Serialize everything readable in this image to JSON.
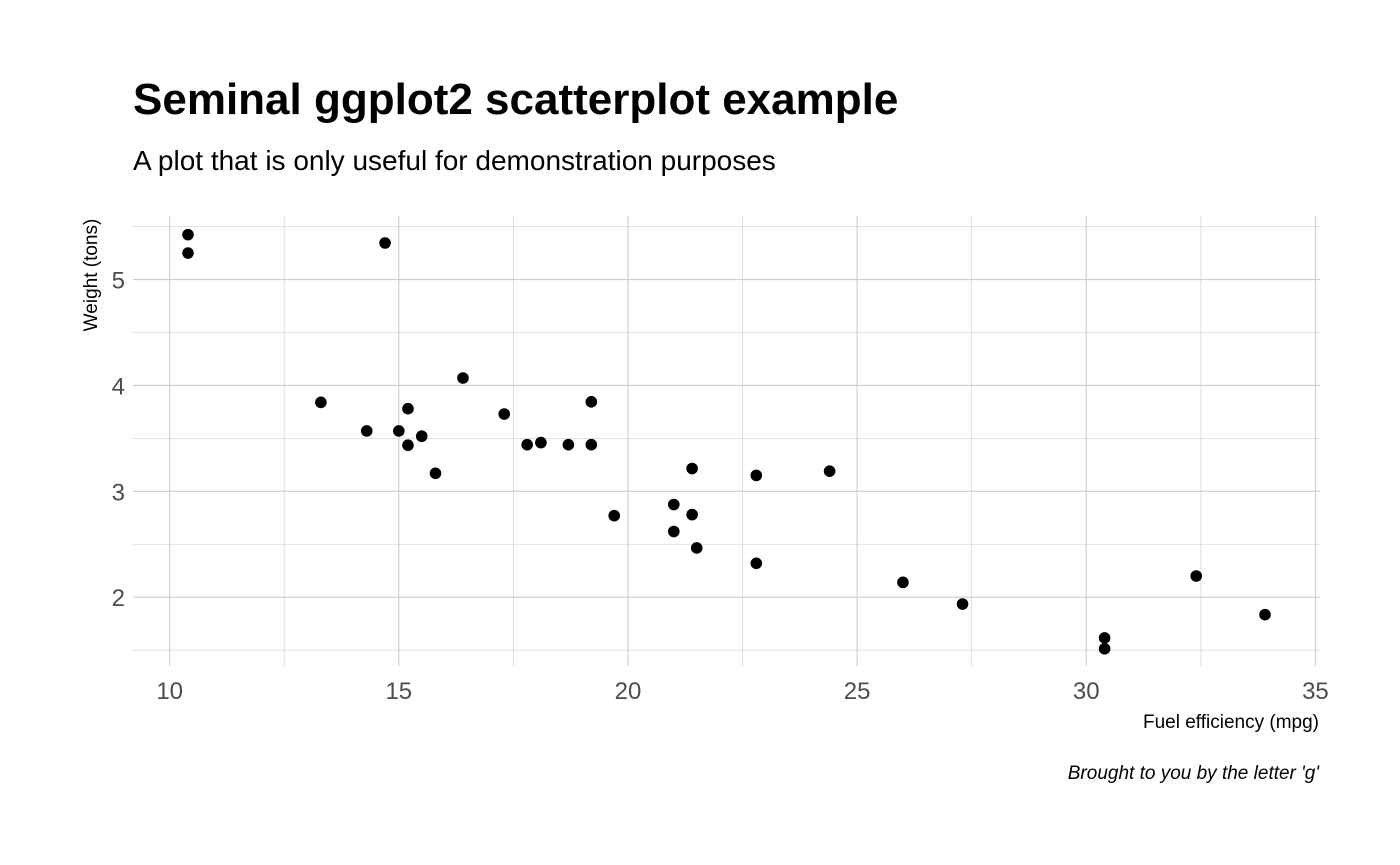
{
  "chart_data": {
    "type": "scatter",
    "title": "Seminal ggplot2 scatterplot example",
    "subtitle": "A plot that is only useful for demonstration purposes",
    "xlabel": "Fuel efficiency (mpg)",
    "ylabel": "Weight (tons)",
    "caption": "Brought to you by the letter 'g'",
    "xlim": [
      9.2,
      35.1
    ],
    "ylim": [
      1.35,
      5.6
    ],
    "x_ticks": [
      10,
      15,
      20,
      25,
      30,
      35
    ],
    "x_tick_labels": [
      "10",
      "15",
      "20",
      "25",
      "30",
      "35"
    ],
    "x_minor": [
      12.5,
      17.5,
      22.5,
      27.5,
      32.5
    ],
    "y_ticks": [
      2,
      3,
      4,
      5
    ],
    "y_tick_labels": [
      "2",
      "3",
      "4",
      "5"
    ],
    "y_minor": [
      1.5,
      2.5,
      3.5,
      4.5,
      5.5
    ],
    "grid": true,
    "point_color": "#000000",
    "series": [
      {
        "points": [
          {
            "x": 21.0,
            "y": 2.62
          },
          {
            "x": 21.0,
            "y": 2.875
          },
          {
            "x": 22.8,
            "y": 2.32
          },
          {
            "x": 21.4,
            "y": 3.215
          },
          {
            "x": 18.7,
            "y": 3.44
          },
          {
            "x": 18.1,
            "y": 3.46
          },
          {
            "x": 14.3,
            "y": 3.57
          },
          {
            "x": 24.4,
            "y": 3.19
          },
          {
            "x": 22.8,
            "y": 3.15
          },
          {
            "x": 19.2,
            "y": 3.44
          },
          {
            "x": 17.8,
            "y": 3.44
          },
          {
            "x": 16.4,
            "y": 4.07
          },
          {
            "x": 17.3,
            "y": 3.73
          },
          {
            "x": 15.2,
            "y": 3.78
          },
          {
            "x": 10.4,
            "y": 5.25
          },
          {
            "x": 10.4,
            "y": 5.424
          },
          {
            "x": 14.7,
            "y": 5.345
          },
          {
            "x": 32.4,
            "y": 2.2
          },
          {
            "x": 30.4,
            "y": 1.615
          },
          {
            "x": 33.9,
            "y": 1.835
          },
          {
            "x": 21.5,
            "y": 2.465
          },
          {
            "x": 15.5,
            "y": 3.52
          },
          {
            "x": 15.2,
            "y": 3.435
          },
          {
            "x": 13.3,
            "y": 3.84
          },
          {
            "x": 19.2,
            "y": 3.845
          },
          {
            "x": 27.3,
            "y": 1.935
          },
          {
            "x": 26.0,
            "y": 2.14
          },
          {
            "x": 30.4,
            "y": 1.513
          },
          {
            "x": 15.8,
            "y": 3.17
          },
          {
            "x": 19.7,
            "y": 2.77
          },
          {
            "x": 15.0,
            "y": 3.57
          },
          {
            "x": 21.4,
            "y": 2.78
          }
        ]
      }
    ]
  }
}
